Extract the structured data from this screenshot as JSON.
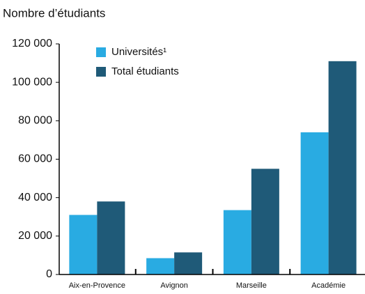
{
  "chart_data": {
    "type": "bar",
    "title": "Nombre d’étudiants",
    "categories": [
      "Aix-en-Provence",
      "Avignon",
      "Marseille",
      "Académie"
    ],
    "series": [
      {
        "name": "Universités¹",
        "color": "#29abe2",
        "values": [
          31000,
          8500,
          33500,
          74000
        ]
      },
      {
        "name": "Total étudiants",
        "color": "#1f5a78",
        "values": [
          38000,
          11500,
          55000,
          111000
        ]
      }
    ],
    "ylim": [
      0,
      120000
    ],
    "yticks": [
      0,
      {
        "value": 20000,
        "label": "20 000"
      },
      {
        "value": 40000,
        "label": "40 000"
      },
      {
        "value": 60000,
        "label": "60 000"
      },
      {
        "value": 80000,
        "label": "80 000"
      },
      {
        "value": 100000,
        "label": "100 000"
      },
      {
        "value": 120000,
        "label": "120 000"
      }
    ],
    "grid": false,
    "legend": "top-left"
  }
}
